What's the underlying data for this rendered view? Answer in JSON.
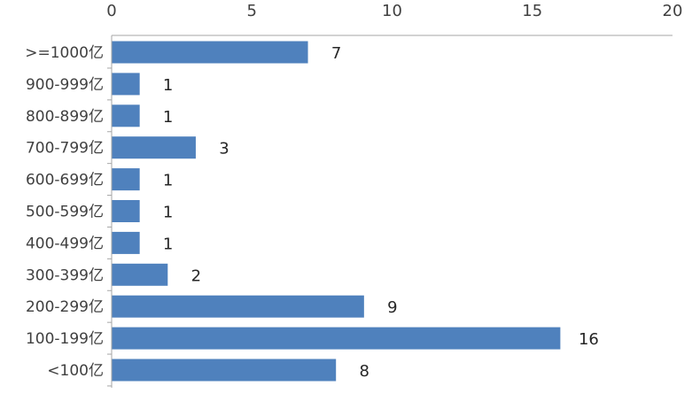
{
  "chart_data": {
    "type": "bar",
    "orientation": "horizontal",
    "categories": [
      ">=1000亿",
      "900-999亿",
      "800-899亿",
      "700-799亿",
      "600-699亿",
      "500-599亿",
      "400-499亿",
      "300-399亿",
      "200-299亿",
      "100-199亿",
      "<100亿"
    ],
    "values": [
      7,
      1,
      1,
      3,
      1,
      1,
      1,
      2,
      9,
      16,
      8
    ],
    "value_labels": [
      "7",
      "1",
      "1",
      "3",
      "1",
      "1",
      "1",
      "2",
      "9",
      "16",
      "8"
    ],
    "xlim": [
      0,
      20
    ],
    "x_ticks": [
      0,
      5,
      10,
      15,
      20
    ],
    "x_tick_labels": [
      "0",
      "5",
      "10",
      "15",
      "20"
    ],
    "x_axis_position": "top",
    "grid": false,
    "bar_color": "#4F81BD",
    "axis_color": "#A6A6A6"
  }
}
